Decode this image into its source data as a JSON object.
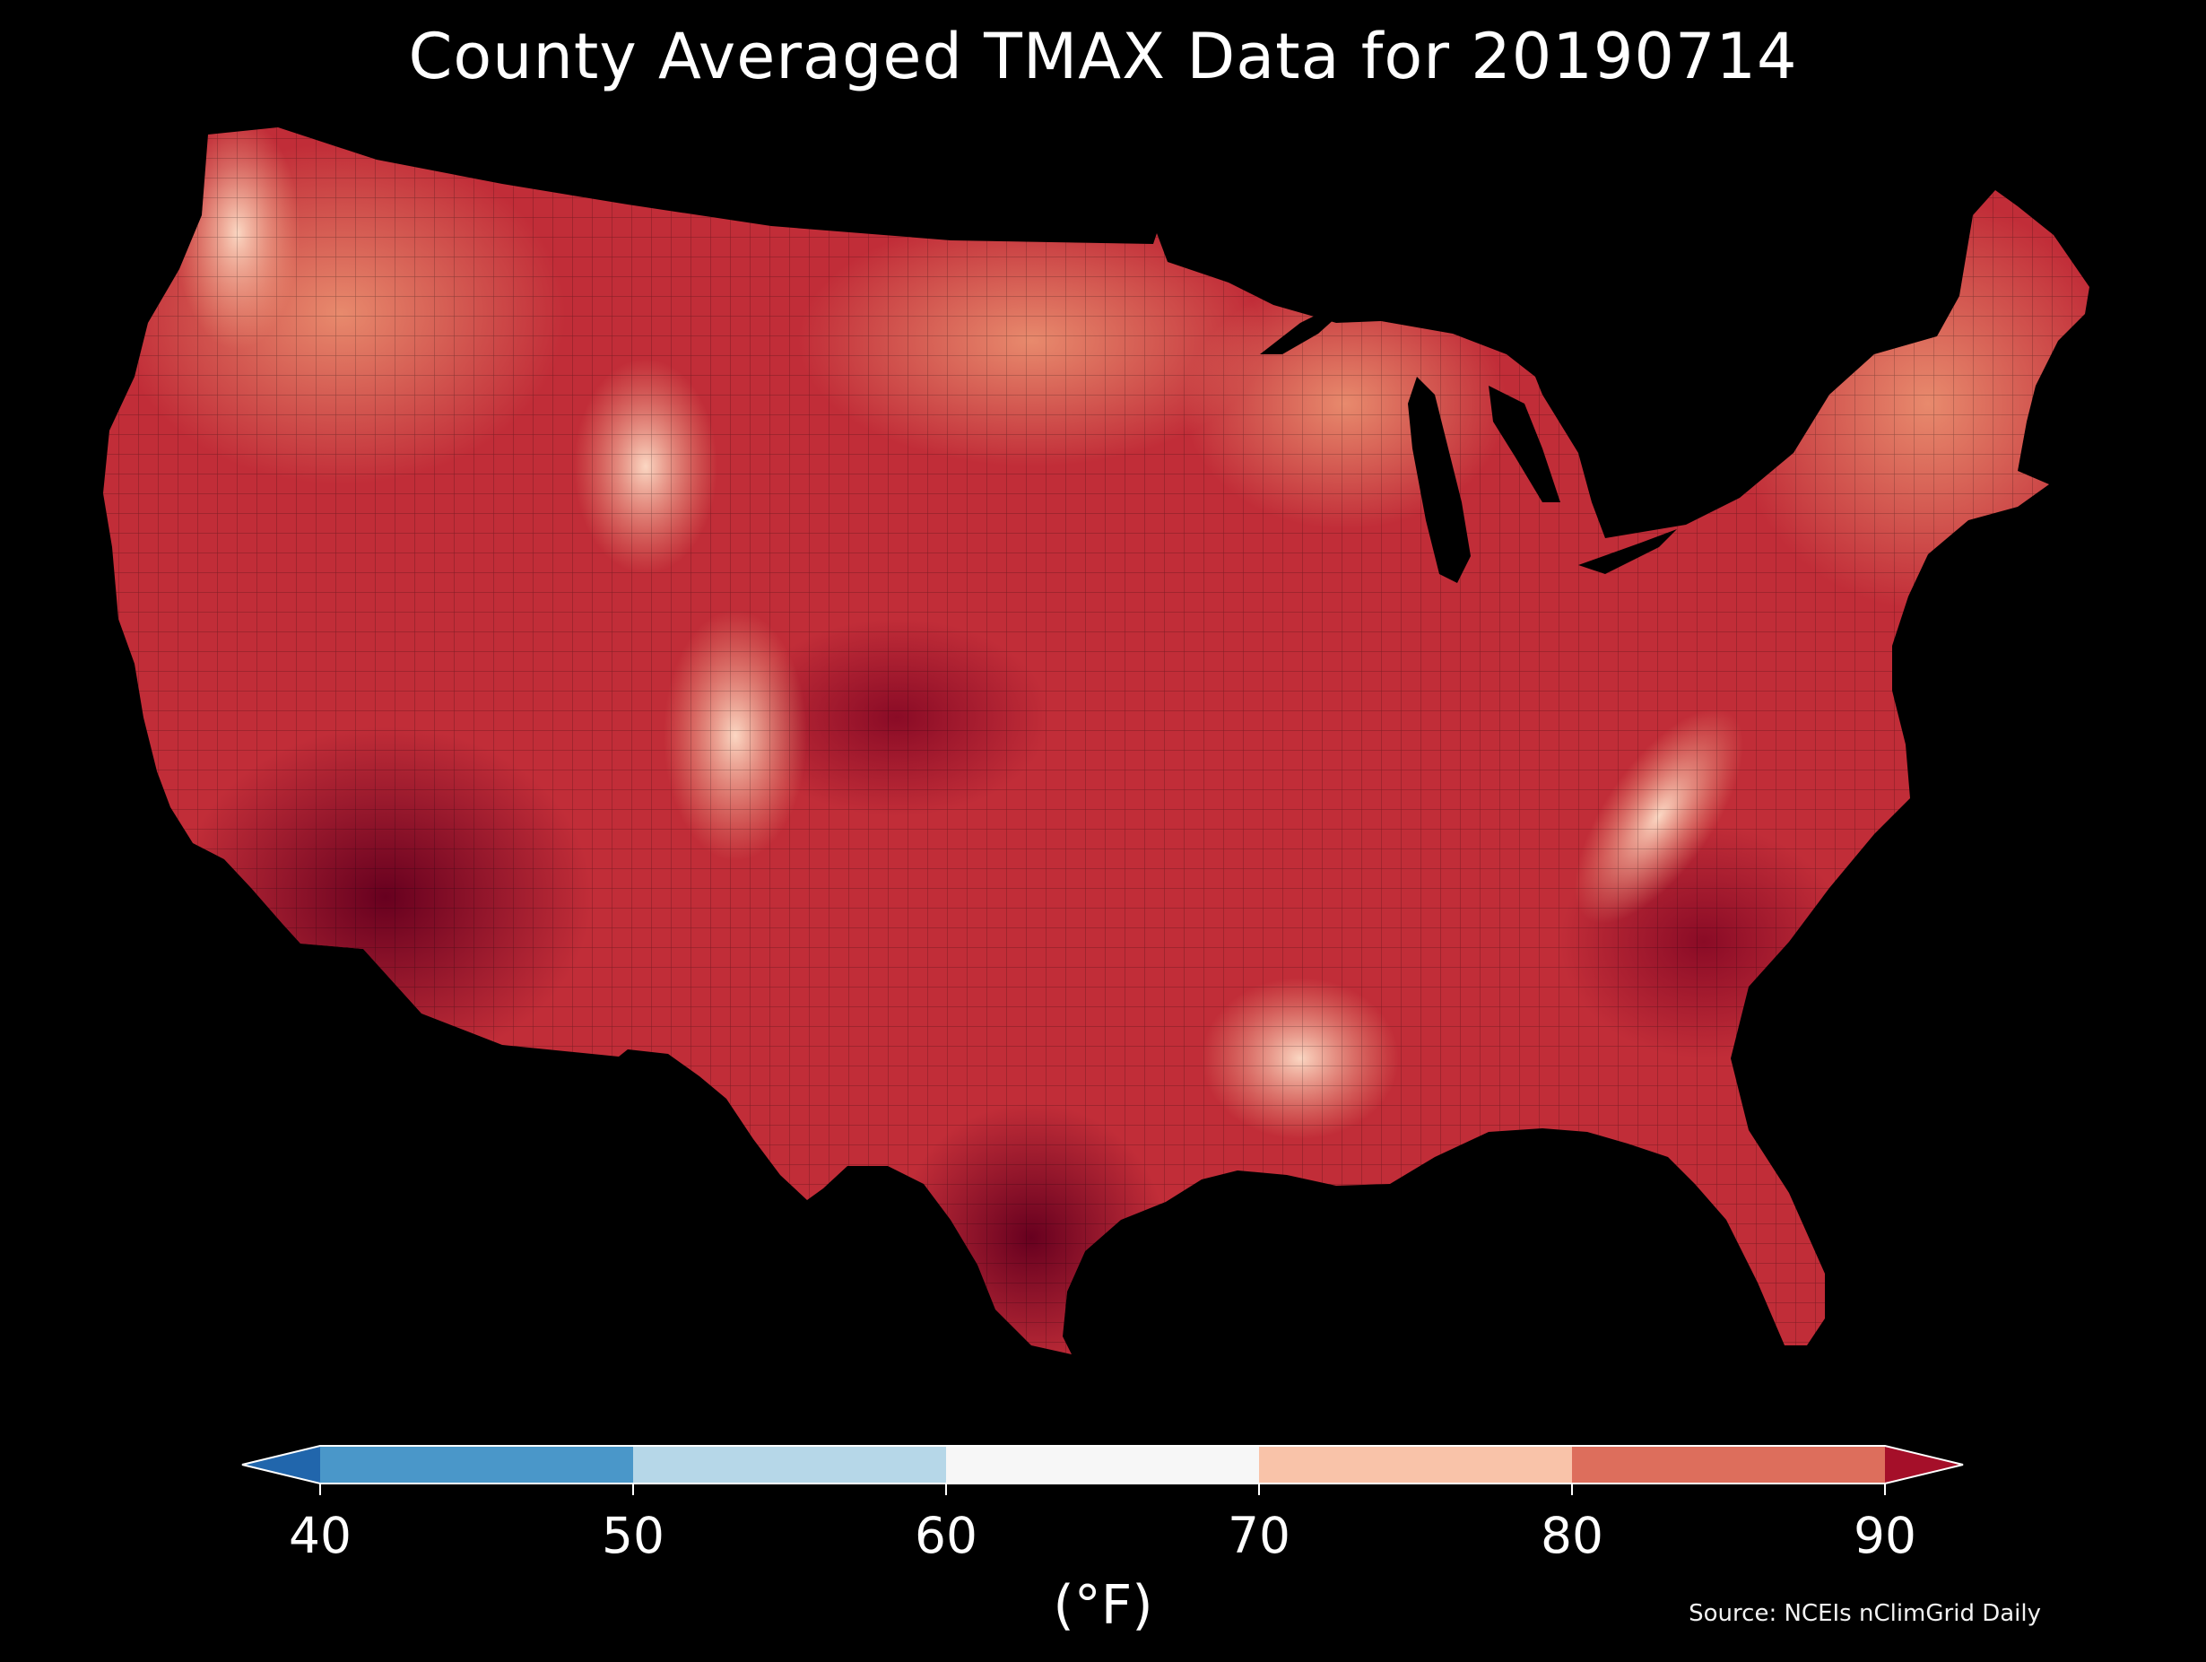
{
  "title": "County Averaged TMAX Data for 20190714",
  "map": {
    "region": "contiguous-united-states",
    "background": "#000000",
    "border_color": "#000000",
    "lakes_color": "#000000"
  },
  "colorbar": {
    "unit_label": "(°F)",
    "ticks": [
      "40",
      "50",
      "60",
      "70",
      "80",
      "90"
    ],
    "extend": "both",
    "bins": [
      {
        "range": "<40",
        "color": "#2166ac"
      },
      {
        "range": "40-50",
        "color": "#4a97c9"
      },
      {
        "range": "50-60",
        "color": "#b6d7e8"
      },
      {
        "range": "60-70",
        "color": "#f7f7f7"
      },
      {
        "range": "70-80",
        "color": "#f9c3a9"
      },
      {
        "range": "80-90",
        "color": "#dd6e5c"
      },
      {
        "range": ">90",
        "color": "#a50f29"
      }
    ]
  },
  "source": "Source: NCEIs nClimGrid Daily"
}
